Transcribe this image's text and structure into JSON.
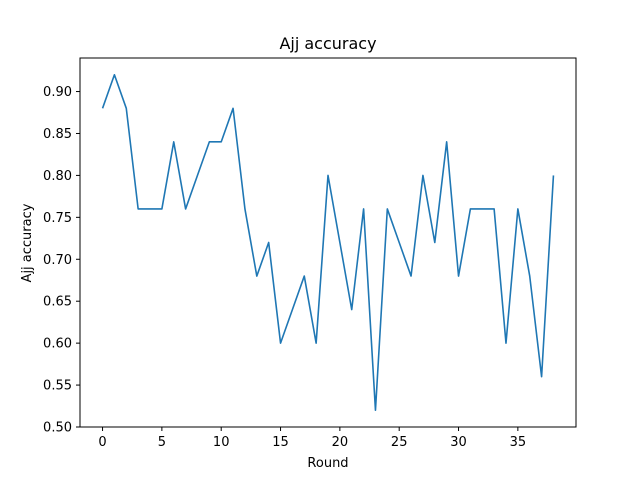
{
  "chart_data": {
    "type": "line",
    "title": "Ajj accuracy",
    "xlabel": "Round",
    "ylabel": "Ajj accuracy",
    "xlim": [
      -1.9,
      39.9
    ],
    "ylim": [
      0.5,
      0.94
    ],
    "xticks": [
      0,
      5,
      10,
      15,
      20,
      25,
      30,
      35
    ],
    "yticks": [
      0.5,
      0.55,
      0.6,
      0.65,
      0.7,
      0.75,
      0.8,
      0.85,
      0.9
    ],
    "grid": false,
    "series": [
      {
        "color": "#1f77b4",
        "x": [
          0,
          1,
          2,
          3,
          4,
          5,
          6,
          7,
          8,
          9,
          10,
          11,
          12,
          13,
          14,
          15,
          16,
          17,
          18,
          19,
          20,
          21,
          22,
          23,
          24,
          25,
          26,
          27,
          28,
          29,
          30,
          31,
          32,
          33,
          34,
          35,
          36,
          37,
          38
        ],
        "values": [
          0.88,
          0.92,
          0.88,
          0.76,
          0.76,
          0.76,
          0.84,
          0.76,
          0.8,
          0.84,
          0.84,
          0.88,
          0.76,
          0.68,
          0.72,
          0.6,
          0.64,
          0.68,
          0.6,
          0.8,
          0.72,
          0.64,
          0.76,
          0.52,
          0.76,
          0.72,
          0.68,
          0.8,
          0.72,
          0.84,
          0.68,
          0.76,
          0.76,
          0.76,
          0.6,
          0.76,
          0.68,
          0.56,
          0.8
        ]
      }
    ]
  }
}
